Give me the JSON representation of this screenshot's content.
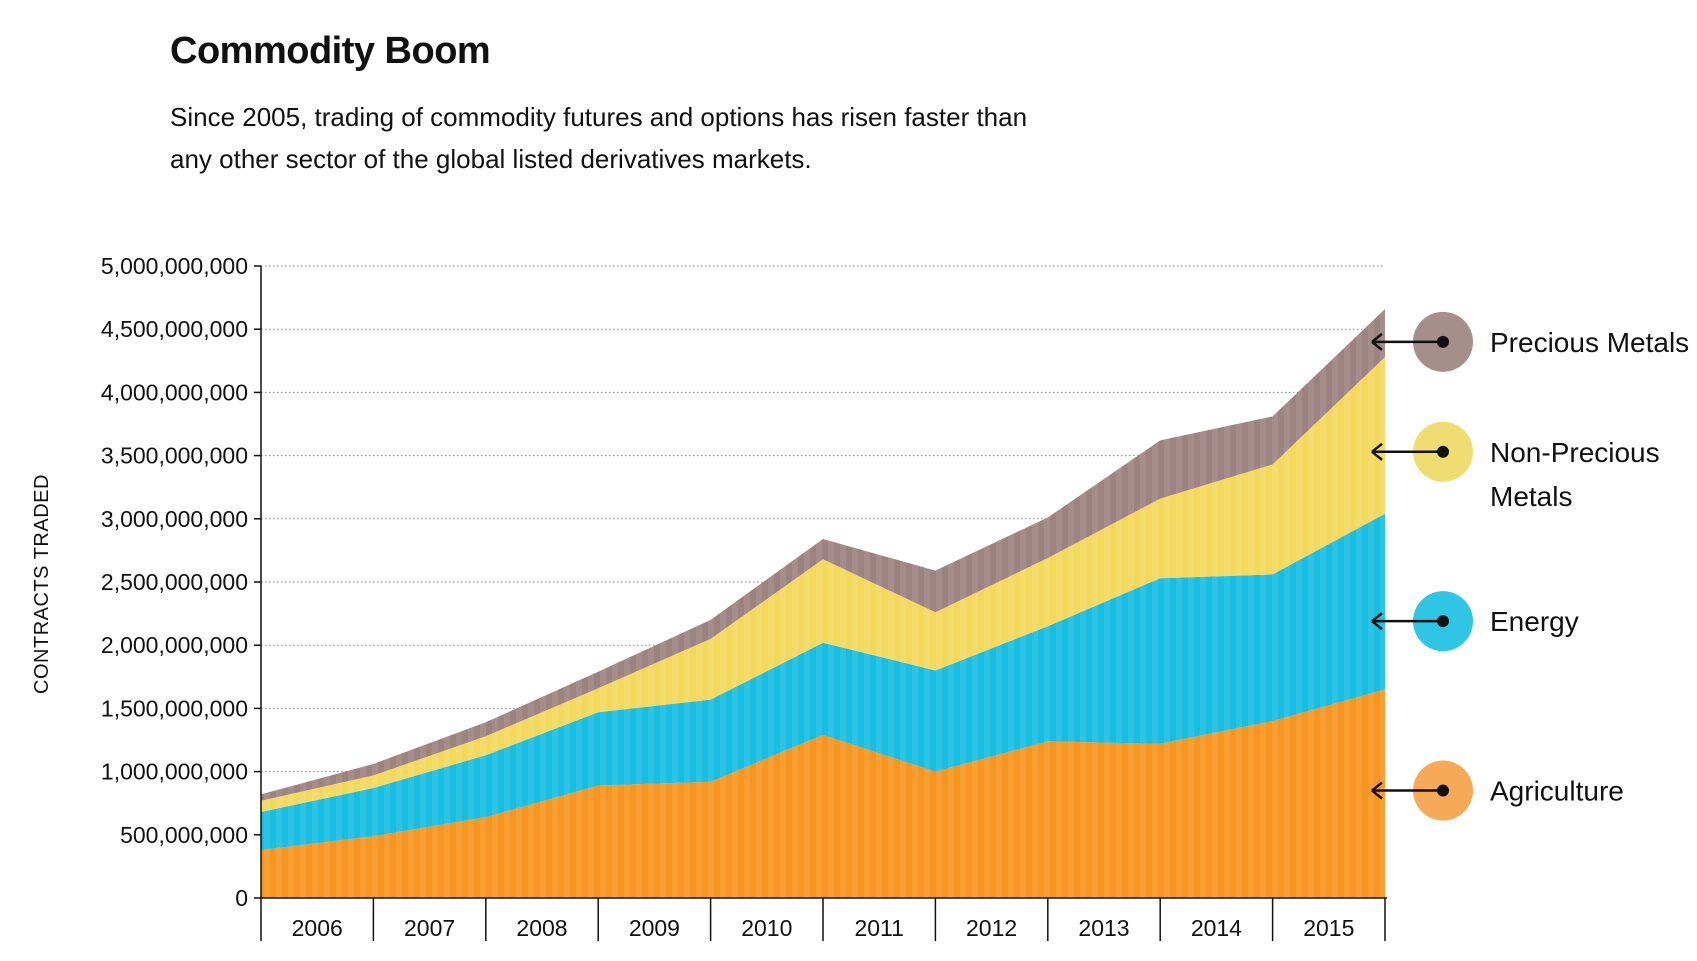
{
  "title": "Commodity Boom",
  "subtitle": "Since 2005, trading of commodity futures and options has risen faster than any other sector of the global listed derivatives markets.",
  "chart_data": {
    "type": "area",
    "stacked": true,
    "title": "Commodity Boom",
    "ylabel": "CONTRACTS TRADED",
    "xlabel": "",
    "ylim": [
      0,
      5000000000
    ],
    "yticks": [
      0,
      500000000,
      1000000000,
      1500000000,
      2000000000,
      2500000000,
      3000000000,
      3500000000,
      4000000000,
      4500000000,
      5000000000
    ],
    "ytick_labels": [
      "0",
      "500,000,000",
      "1,000,000,000",
      "1,500,000,000",
      "2,000,000,000",
      "2,500,000,000",
      "3,000,000,000",
      "3,500,000,000",
      "4,000,000,000",
      "4,500,000,000",
      "5,000,000,000"
    ],
    "categories": [
      "2006",
      "2007",
      "2008",
      "2009",
      "2010",
      "2011",
      "2012",
      "2013",
      "2014",
      "2015"
    ],
    "grid": "horizontal dotted",
    "legend_position": "right",
    "x": [
      2005.5,
      2006.5,
      2007.5,
      2008.5,
      2009.5,
      2010.5,
      2011.5,
      2012.5,
      2013.5,
      2014.5,
      2015.5
    ],
    "series": [
      {
        "name": "Agriculture",
        "color": "#f6951f",
        "values": [
          380000000,
          490000000,
          640000000,
          890000000,
          920000000,
          1290000000,
          1000000000,
          1240000000,
          1220000000,
          1400000000,
          1650000000
        ]
      },
      {
        "name": "Energy",
        "color": "#18bde2",
        "values": [
          300000000,
          380000000,
          490000000,
          580000000,
          650000000,
          730000000,
          800000000,
          910000000,
          1310000000,
          1160000000,
          1390000000
        ]
      },
      {
        "name": "Non-Precious Metals",
        "color": "#f2d95c",
        "values": [
          90000000,
          100000000,
          150000000,
          190000000,
          480000000,
          660000000,
          460000000,
          540000000,
          630000000,
          870000000,
          1240000000
        ]
      },
      {
        "name": "Precious Metals",
        "color": "#9c8280",
        "values": [
          50000000,
          90000000,
          110000000,
          130000000,
          150000000,
          160000000,
          330000000,
          320000000,
          460000000,
          380000000,
          380000000
        ]
      }
    ]
  },
  "legend": [
    {
      "lines": [
        "Precious Metals"
      ],
      "color": "#a68e8c",
      "arrow_value": 4400000000
    },
    {
      "lines": [
        "Non-Precious",
        "Metals"
      ],
      "color": "#f0dd72",
      "arrow_value": 3530000000
    },
    {
      "lines": [
        "Energy"
      ],
      "color": "#2fc6e6",
      "arrow_value": 2190000000
    },
    {
      "lines": [
        "Agriculture"
      ],
      "color": "#f6a956",
      "arrow_value": 850000000
    }
  ]
}
